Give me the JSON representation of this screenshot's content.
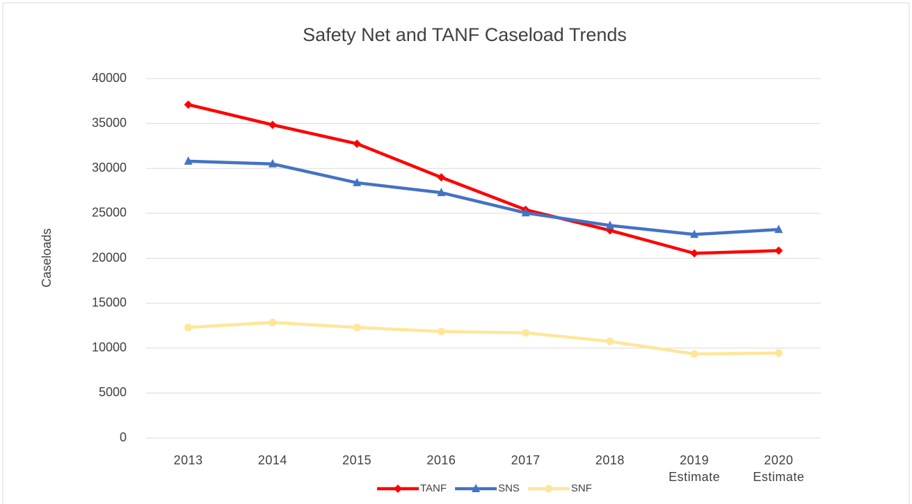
{
  "chart_data": {
    "type": "line",
    "title": "Safety Net and TANF Caseload Trends",
    "y_label": "Caseloads",
    "categories": [
      "2013",
      "2014",
      "2015",
      "2016",
      "2017",
      "2018",
      "2019 Estimate",
      "2020 Estimate"
    ],
    "series": [
      {
        "name": "TANF",
        "color": "#ff0000",
        "marker": "diamond",
        "values": [
          37100,
          34850,
          32750,
          29000,
          25400,
          23100,
          20550,
          20850
        ]
      },
      {
        "name": "SNS",
        "color": "#4472c4",
        "marker": "triangle",
        "values": [
          30800,
          30500,
          28400,
          27300,
          25050,
          23650,
          22650,
          23200
        ]
      },
      {
        "name": "SNF",
        "color": "#ffe699",
        "marker": "circle",
        "values": [
          12300,
          12850,
          12300,
          11850,
          11700,
          10750,
          9350,
          9450
        ]
      }
    ],
    "ylim": [
      0,
      40000
    ],
    "yticks": [
      0,
      5000,
      10000,
      15000,
      20000,
      25000,
      30000,
      35000,
      40000
    ],
    "grid": true,
    "legend": "bottom"
  }
}
